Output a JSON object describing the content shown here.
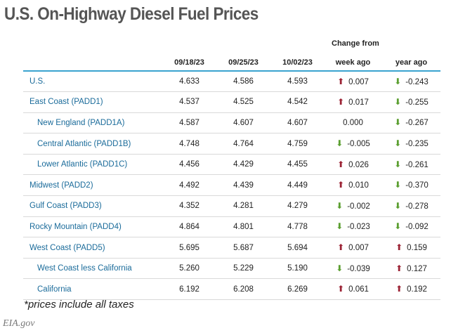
{
  "title": "U.S. On-Highway Diesel Fuel Prices",
  "change_from": "Change from",
  "headers": [
    "",
    "09/18/23",
    "09/25/23",
    "10/02/23",
    "week ago",
    "year ago"
  ],
  "rows": [
    {
      "region": "U.S.",
      "sub": false,
      "v1": "4.633",
      "v2": "4.586",
      "v3": "4.593",
      "week": "0.007",
      "week_dir": "up",
      "year": "-0.243",
      "year_dir": "down"
    },
    {
      "region": "East Coast (PADD1)",
      "sub": false,
      "v1": "4.537",
      "v2": "4.525",
      "v3": "4.542",
      "week": "0.017",
      "week_dir": "up",
      "year": "-0.255",
      "year_dir": "down"
    },
    {
      "region": "New England (PADD1A)",
      "sub": true,
      "v1": "4.587",
      "v2": "4.607",
      "v3": "4.607",
      "week": "0.000",
      "week_dir": "none",
      "year": "-0.267",
      "year_dir": "down"
    },
    {
      "region": "Central Atlantic (PADD1B)",
      "sub": true,
      "v1": "4.748",
      "v2": "4.764",
      "v3": "4.759",
      "week": "-0.005",
      "week_dir": "down",
      "year": "-0.235",
      "year_dir": "down"
    },
    {
      "region": "Lower Atlantic (PADD1C)",
      "sub": true,
      "v1": "4.456",
      "v2": "4.429",
      "v3": "4.455",
      "week": "0.026",
      "week_dir": "up",
      "year": "-0.261",
      "year_dir": "down"
    },
    {
      "region": "Midwest (PADD2)",
      "sub": false,
      "v1": "4.492",
      "v2": "4.439",
      "v3": "4.449",
      "week": "0.010",
      "week_dir": "up",
      "year": "-0.370",
      "year_dir": "down"
    },
    {
      "region": "Gulf Coast (PADD3)",
      "sub": false,
      "v1": "4.352",
      "v2": "4.281",
      "v3": "4.279",
      "week": "-0.002",
      "week_dir": "down",
      "year": "-0.278",
      "year_dir": "down"
    },
    {
      "region": "Rocky Mountain (PADD4)",
      "sub": false,
      "v1": "4.864",
      "v2": "4.801",
      "v3": "4.778",
      "week": "-0.023",
      "week_dir": "down",
      "year": "-0.092",
      "year_dir": "down"
    },
    {
      "region": "West Coast (PADD5)",
      "sub": false,
      "v1": "5.695",
      "v2": "5.687",
      "v3": "5.694",
      "week": "0.007",
      "week_dir": "up",
      "year": "0.159",
      "year_dir": "up"
    },
    {
      "region": "West Coast less California",
      "sub": true,
      "v1": "5.260",
      "v2": "5.229",
      "v3": "5.190",
      "week": "-0.039",
      "week_dir": "down",
      "year": "0.127",
      "year_dir": "up"
    },
    {
      "region": "California",
      "sub": true,
      "v1": "6.192",
      "v2": "6.208",
      "v3": "6.269",
      "week": "0.061",
      "week_dir": "up",
      "year": "0.192",
      "year_dir": "up"
    }
  ],
  "footnote": "*prices include all taxes",
  "source": "EIA.gov",
  "colors": {
    "up_arrow": "#9b2234",
    "down_arrow": "#5a9e2f",
    "region_text": "#1a6b9a",
    "header_rule": "#3aa3cf"
  },
  "icons": {
    "up": "arrow-up-icon",
    "down": "arrow-down-icon"
  }
}
